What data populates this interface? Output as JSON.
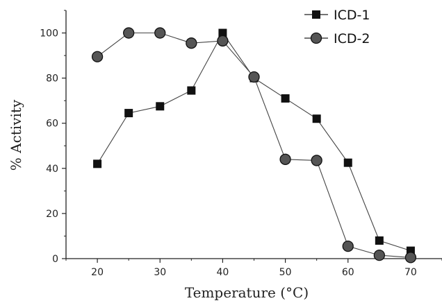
{
  "chart_data": {
    "type": "line",
    "xlabel": "Temperature (°C)",
    "ylabel": "% Activity",
    "xlim": [
      15,
      75
    ],
    "ylim": [
      0,
      110
    ],
    "xticks": [
      20,
      30,
      40,
      50,
      60,
      70
    ],
    "yticks": [
      0,
      20,
      40,
      60,
      80,
      100
    ],
    "legend_position": "top-right",
    "grid": false,
    "series": [
      {
        "name": "ICD-1",
        "marker": "square",
        "color": "#111111",
        "points": [
          [
            20,
            42
          ],
          [
            25,
            64.5
          ],
          [
            30,
            67.5
          ],
          [
            35,
            74.5
          ],
          [
            40,
            100
          ],
          [
            45,
            80
          ],
          [
            50,
            71
          ],
          [
            55,
            62
          ],
          [
            60,
            42.5
          ],
          [
            65,
            8
          ],
          [
            70,
            3.5
          ]
        ]
      },
      {
        "name": "ICD-2",
        "marker": "circle",
        "color": "#111111",
        "points": [
          [
            20,
            89.5
          ],
          [
            25,
            100
          ],
          [
            30,
            100
          ],
          [
            35,
            95.5
          ],
          [
            40,
            96.5
          ],
          [
            45,
            80.5
          ],
          [
            50,
            44
          ],
          [
            55,
            43.5
          ],
          [
            60,
            5.5
          ],
          [
            65,
            1.5
          ],
          [
            70,
            0.5
          ]
        ]
      }
    ]
  }
}
